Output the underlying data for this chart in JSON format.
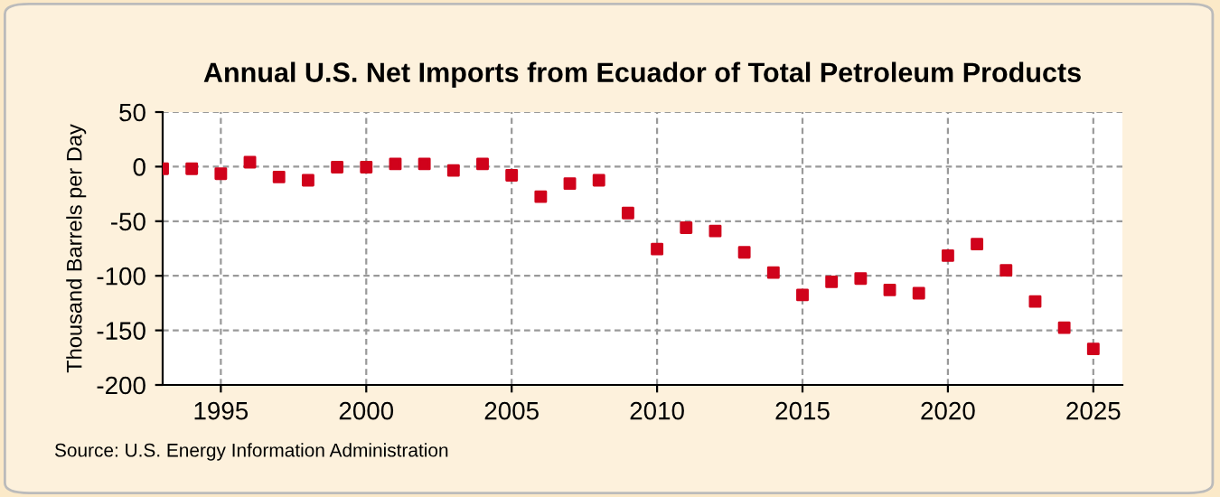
{
  "chart_data": {
    "type": "scatter",
    "title": "Annual U.S. Net Imports from Ecuador of Total Petroleum Products",
    "ylabel": "Thousand Barrels per Day",
    "x": [
      1993,
      1994,
      1995,
      1996,
      1997,
      1998,
      1999,
      2000,
      2001,
      2002,
      2003,
      2004,
      2005,
      2006,
      2007,
      2008,
      2009,
      2010,
      2011,
      2012,
      2013,
      2014,
      2015,
      2016,
      2017,
      2018,
      2019,
      2020,
      2021,
      2022,
      2023,
      2024,
      2025
    ],
    "series": [
      {
        "color": "#d0021b",
        "values": [
          -2,
          -2,
          -6.5,
          4,
          -9.5,
          -12.5,
          -0.5,
          -0.5,
          2.5,
          2.5,
          -3.5,
          2.5,
          -8,
          -27.5,
          -15.5,
          -12.5,
          -42.5,
          -75.5,
          -56,
          -59,
          -78.5,
          -97,
          -117.5,
          -105.5,
          -102.5,
          -113,
          -116,
          -81.5,
          -71,
          -95,
          -123.5,
          -147.5,
          -167
        ]
      }
    ],
    "xlim": [
      1993,
      2026
    ],
    "xticks": [
      1995,
      2000,
      2005,
      2010,
      2015,
      2020,
      2025
    ],
    "ylim": [
      -200,
      50
    ],
    "yticks": [
      -200,
      -150,
      -100,
      -50,
      0,
      50
    ],
    "grid": true,
    "marker": "square",
    "annotations": [
      "Source: U.S. Energy Information Administration"
    ]
  }
}
